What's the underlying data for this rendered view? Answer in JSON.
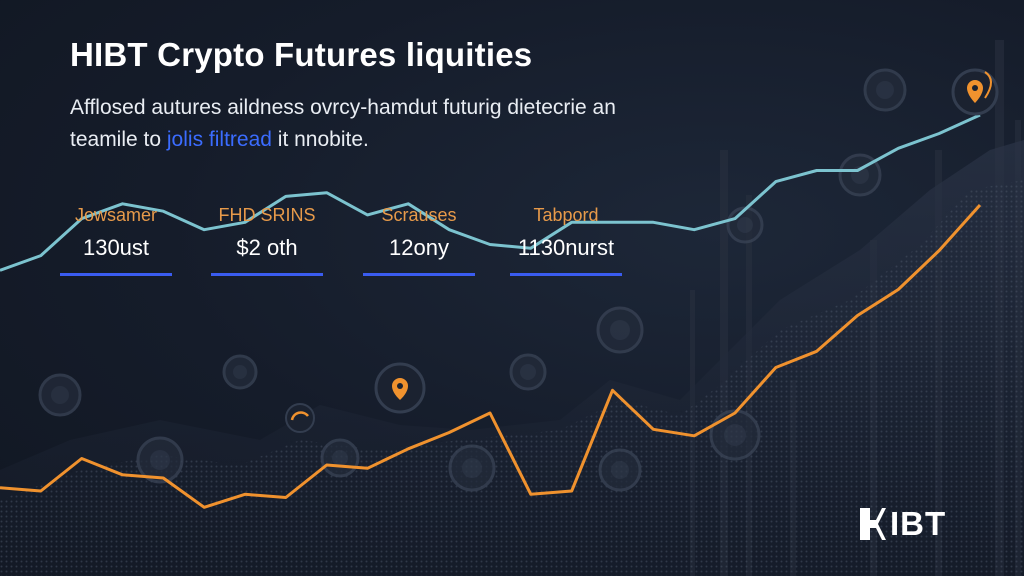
{
  "header": {
    "title": "HIBT Crypto Futures liquities",
    "subtitle_part1": "Afflosed autures aildness ovrcy-hamdut futurig dietecrie an teamile to ",
    "subtitle_link": "jolis filtread",
    "subtitle_part2": " it nnobite."
  },
  "stats": [
    {
      "label": "Jowsamer",
      "value": "130ust"
    },
    {
      "label": "FHD SRINS",
      "value": "$2 oth"
    },
    {
      "label": "Scrauses",
      "value": "12ony"
    },
    {
      "label": "Tabpord",
      "value": "1130nurst"
    }
  ],
  "brand": {
    "logo_text": "IBT"
  },
  "colors": {
    "background": "#151c2a",
    "accent_orange": "#f0922e",
    "accent_teal": "#7cc3cf",
    "accent_blue": "#3a5cf0"
  },
  "icons": [
    "map-pin-icon",
    "coin-icon",
    "hibt-logo-icon"
  ],
  "chart_data": {
    "type": "line",
    "series": [
      {
        "values": [
          0.58,
          0.62,
          0.72,
          0.76,
          0.74,
          0.69,
          0.71,
          0.78,
          0.79,
          0.73,
          0.76,
          0.69,
          0.65,
          0.64,
          0.71,
          0.71,
          0.71,
          0.69,
          0.72,
          0.82,
          0.85,
          0.85,
          0.91,
          0.95,
          1.0
        ]
      },
      {
        "values": [
          0.13,
          0.12,
          0.22,
          0.17,
          0.16,
          0.07,
          0.11,
          0.1,
          0.2,
          0.19,
          0.25,
          0.3,
          0.36,
          0.11,
          0.12,
          0.43,
          0.31,
          0.29,
          0.36,
          0.5,
          0.55,
          0.66,
          0.74,
          0.86,
          1.0
        ]
      }
    ]
  }
}
